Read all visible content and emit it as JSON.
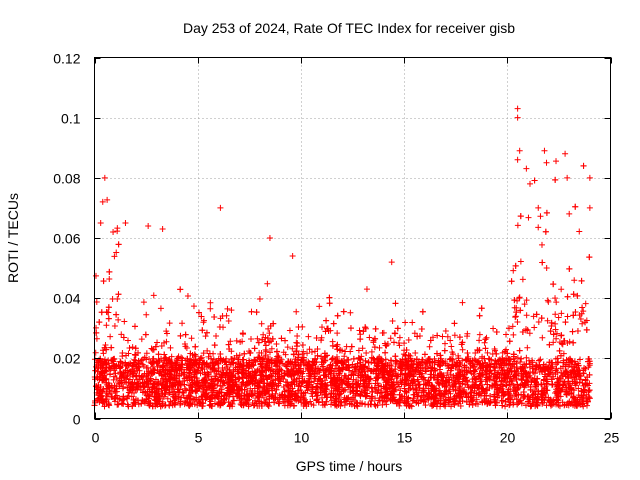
{
  "chart_data": {
    "type": "scatter",
    "title": "Day 253 of 2024, Rate Of TEC Index for receiver gisb",
    "xlabel": "GPS time / hours",
    "ylabel": "ROTI / TECUs",
    "xlim": [
      0,
      25
    ],
    "ylim": [
      0,
      0.12
    ],
    "xticks": [
      0,
      5,
      10,
      15,
      20,
      25
    ],
    "xtick_labels": [
      "0",
      "5",
      "10",
      "15",
      "20",
      "25"
    ],
    "yticks": [
      0,
      0.02,
      0.04,
      0.06,
      0.08,
      0.1,
      0.12
    ],
    "ytick_labels": [
      "0",
      "0.02",
      "0.04",
      "0.06",
      "0.08",
      "0.1",
      "0.12"
    ],
    "grid": true,
    "marker": "+",
    "series": [
      {
        "name": "ROTI",
        "color": "#ff0000",
        "x_range": [
          0,
          24
        ],
        "baseline_band": [
          0.004,
          0.02
        ],
        "notable_points": [
          {
            "x": 0.5,
            "y": 0.08
          },
          {
            "x": 0.4,
            "y": 0.072
          },
          {
            "x": 0.3,
            "y": 0.065
          },
          {
            "x": 0.9,
            "y": 0.062
          },
          {
            "x": 1.5,
            "y": 0.065
          },
          {
            "x": 2.6,
            "y": 0.064
          },
          {
            "x": 3.3,
            "y": 0.063
          },
          {
            "x": 6.1,
            "y": 0.07
          },
          {
            "x": 8.5,
            "y": 0.06
          },
          {
            "x": 9.6,
            "y": 0.054
          },
          {
            "x": 13.2,
            "y": 0.043
          },
          {
            "x": 14.4,
            "y": 0.052
          },
          {
            "x": 20.5,
            "y": 0.103
          },
          {
            "x": 20.5,
            "y": 0.1
          },
          {
            "x": 20.6,
            "y": 0.089
          },
          {
            "x": 20.5,
            "y": 0.086
          },
          {
            "x": 21.8,
            "y": 0.089
          },
          {
            "x": 21.9,
            "y": 0.085
          },
          {
            "x": 22.8,
            "y": 0.088
          },
          {
            "x": 22.9,
            "y": 0.08
          },
          {
            "x": 24.0,
            "y": 0.08
          },
          {
            "x": 24.0,
            "y": 0.07
          },
          {
            "x": 21.1,
            "y": 0.078
          },
          {
            "x": 21.5,
            "y": 0.07
          },
          {
            "x": 23.0,
            "y": 0.068
          }
        ]
      }
    ]
  }
}
